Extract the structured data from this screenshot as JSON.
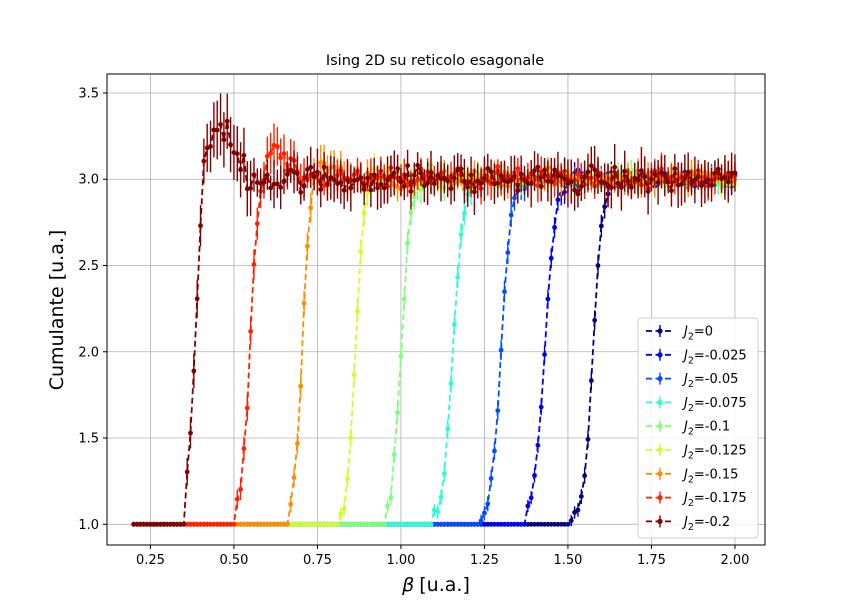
{
  "chart_data": {
    "type": "line",
    "title": "Ising 2D su reticolo esagonale",
    "xlabel": "[u.a.]",
    "xlabel_symbol": "β",
    "ylabel": "Cumulante [u.a.]",
    "xlim": [
      0.12,
      2.09
    ],
    "ylim": [
      0.88,
      3.61
    ],
    "xticks": [
      0.25,
      0.5,
      0.75,
      1.0,
      1.25,
      1.5,
      1.75,
      2.0
    ],
    "xtick_labels": [
      "0.25",
      "0.50",
      "0.75",
      "1.00",
      "1.25",
      "1.50",
      "1.75",
      "2.00"
    ],
    "yticks": [
      1.0,
      1.5,
      2.0,
      2.5,
      3.0,
      3.5
    ],
    "ytick_labels": [
      "1.0",
      "1.5",
      "2.0",
      "2.5",
      "3.0",
      "3.5"
    ],
    "grid": true,
    "legend_position": "lower-right",
    "x_range_data": [
      0.2,
      2.0
    ],
    "x_step": 0.01,
    "series": [
      {
        "name": "J2=0",
        "label_sym": "J",
        "label_sub": "2",
        "label_val": "=0",
        "color": "#00007f",
        "transition": {
          "start": 1.51,
          "mid": 1.575,
          "end": 1.62,
          "peak": 3.0
        },
        "noise": 0.03,
        "err": 0.04
      },
      {
        "name": "J2=-0.025",
        "label_sym": "J",
        "label_sub": "2",
        "label_val": "=-0.025",
        "color": "#0000f1",
        "transition": {
          "start": 1.37,
          "mid": 1.43,
          "end": 1.5,
          "peak": 3.0
        },
        "noise": 0.03,
        "err": 0.04
      },
      {
        "name": "J2=-0.05",
        "label_sym": "J",
        "label_sub": "2",
        "label_val": "=-0.05",
        "color": "#004cff",
        "transition": {
          "start": 1.24,
          "mid": 1.3,
          "end": 1.36,
          "peak": 3.0
        },
        "noise": 0.03,
        "err": 0.045
      },
      {
        "name": "J2=-0.075",
        "label_sym": "J",
        "label_sub": "2",
        "label_val": "=-0.075",
        "color": "#29ffce",
        "transition": {
          "start": 1.1,
          "mid": 1.155,
          "end": 1.22,
          "peak": 3.0
        },
        "noise": 0.03,
        "err": 0.045
      },
      {
        "name": "J2=-0.1",
        "label_sym": "J",
        "label_sub": "2",
        "label_val": "=-0.1",
        "color": "#7dff7a",
        "transition": {
          "start": 0.96,
          "mid": 1.0,
          "end": 1.07,
          "peak": 3.0
        },
        "noise": 0.035,
        "err": 0.05
      },
      {
        "name": "J2=-0.125",
        "label_sym": "J",
        "label_sub": "2",
        "label_val": "=-0.125",
        "color": "#ceff29",
        "transition": {
          "start": 0.82,
          "mid": 0.865,
          "end": 0.92,
          "peak": 3.05
        },
        "noise": 0.035,
        "err": 0.05
      },
      {
        "name": "J2=-0.15",
        "label_sym": "J",
        "label_sub": "2",
        "label_val": "=-0.15",
        "color": "#ff8c00",
        "transition": {
          "start": 0.67,
          "mid": 0.705,
          "end": 0.77,
          "peak": 3.1
        },
        "noise": 0.04,
        "err": 0.06
      },
      {
        "name": "J2=-0.175",
        "label_sym": "J",
        "label_sub": "2",
        "label_val": "=-0.175",
        "color": "#ff2200",
        "transition": {
          "start": 0.51,
          "mid": 0.55,
          "end": 0.62,
          "peak": 3.15
        },
        "noise": 0.045,
        "err": 0.07
      },
      {
        "name": "J2=-0.2",
        "label_sym": "J",
        "label_sub": "2",
        "label_val": "=-0.2",
        "color": "#7f0000",
        "transition": {
          "start": 0.36,
          "mid": 0.385,
          "end": 0.46,
          "peak": 3.3
        },
        "noise": 0.06,
        "err": 0.1
      }
    ]
  }
}
